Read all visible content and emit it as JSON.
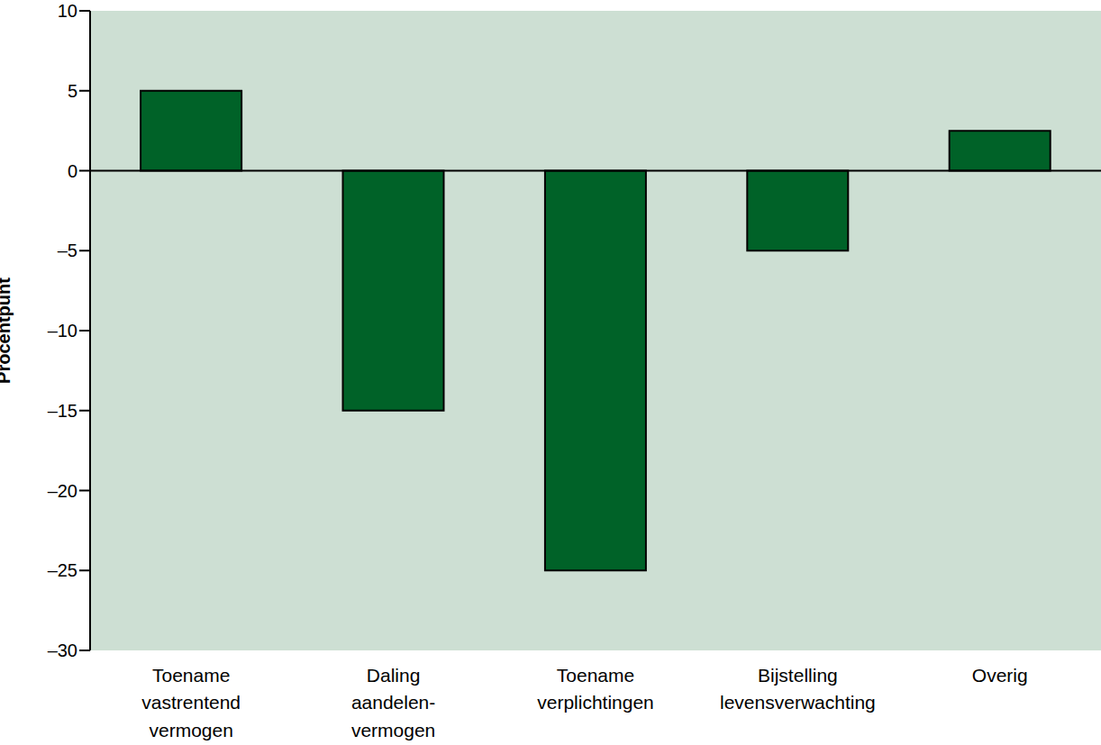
{
  "chart_data": {
    "type": "bar",
    "ylabel": "Procentpunt",
    "categories": [
      "Toename\nvastrentend\nvermogen",
      "Daling\naandelen-\nvermogen",
      "Toename\nverplichtingen",
      "Bijstelling\nlevensverwachting",
      "Overig"
    ],
    "values": [
      5,
      -15,
      -25,
      -5,
      2.5
    ],
    "color": "#006228",
    "ylim": [
      -30,
      10
    ],
    "yticks": [
      {
        "value": -30,
        "label": "–30"
      },
      {
        "value": -25,
        "label": "–25"
      },
      {
        "value": -20,
        "label": "–20"
      },
      {
        "value": -15,
        "label": "–15"
      },
      {
        "value": -10,
        "label": "–10"
      },
      {
        "value": -5,
        "label": "–5"
      },
      0,
      5,
      10
    ],
    "grid": false
  }
}
